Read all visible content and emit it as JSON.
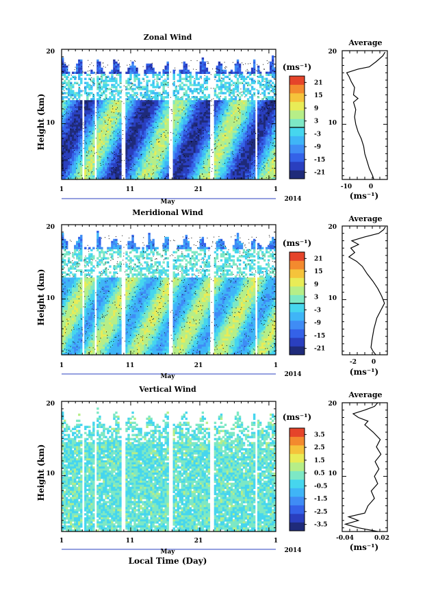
{
  "figure": {
    "month_label": "May",
    "year_label": "2014",
    "xlabel": "Local Time (Day)",
    "ylabel": "Height (km)",
    "units": "(ms⁻¹)",
    "profile_xlabel": "(ms⁻¹)",
    "profile_title": "Average",
    "colormap": [
      "#1f2b7a",
      "#2a3fbf",
      "#3462e8",
      "#3f8cf5",
      "#3fb5f7",
      "#46d6ee",
      "#7de8c5",
      "#b6ee88",
      "#e8ec57",
      "#f5c33b",
      "#f38a2e",
      "#e5442a"
    ]
  },
  "chart_data": [
    {
      "type": "heatmap",
      "title": "Zonal Wind",
      "x_ticks": [
        "1",
        "11",
        "21",
        "1"
      ],
      "y_ticks": [
        "20",
        "10"
      ],
      "ylim": [
        2.5,
        20
      ],
      "colorbar_labels": [
        "21",
        "15",
        "9",
        "3",
        "-3",
        "-9",
        "-15",
        "-21"
      ],
      "colorbar_range": [
        -24,
        24
      ],
      "profile": {
        "title": "Average",
        "x_ticks": [
          "-10",
          "0"
        ],
        "xlim": [
          -13,
          7
        ],
        "points": [
          [
            1,
            2.5
          ],
          [
            0.5,
            3
          ],
          [
            -1,
            4
          ],
          [
            -2,
            5
          ],
          [
            -3,
            6
          ],
          [
            -3.5,
            7
          ],
          [
            -4.5,
            8
          ],
          [
            -6,
            9
          ],
          [
            -7,
            10
          ],
          [
            -7.5,
            11
          ],
          [
            -7,
            12
          ],
          [
            -8,
            13
          ],
          [
            -6,
            13.5
          ],
          [
            -8,
            14
          ],
          [
            -7.5,
            15
          ],
          [
            -9,
            15.8
          ],
          [
            -10,
            16.5
          ],
          [
            -11,
            17
          ],
          [
            -6,
            17.5
          ],
          [
            -1,
            17.8
          ],
          [
            2,
            18.5
          ],
          [
            5,
            19.3
          ],
          [
            6,
            19.8
          ]
        ]
      }
    },
    {
      "type": "heatmap",
      "title": "Meridional Wind",
      "x_ticks": [
        "1",
        "11",
        "21",
        "1"
      ],
      "y_ticks": [
        "20",
        "10"
      ],
      "ylim": [
        2.5,
        20
      ],
      "colorbar_labels": [
        "21",
        "15",
        "9",
        "3",
        "-3",
        "-9",
        "-15",
        "-21"
      ],
      "colorbar_range": [
        -24,
        24
      ],
      "profile": {
        "title": "Average",
        "x_ticks": [
          "-2",
          "0"
        ],
        "xlim": [
          -3.5,
          1.2
        ],
        "points": [
          [
            0,
            2.5
          ],
          [
            -0.3,
            3
          ],
          [
            -0.5,
            3.5
          ],
          [
            -0.4,
            4.5
          ],
          [
            -0.2,
            6
          ],
          [
            0.1,
            7.5
          ],
          [
            0.5,
            8.5
          ],
          [
            0.9,
            9.5
          ],
          [
            0.6,
            10.5
          ],
          [
            0.2,
            11.5
          ],
          [
            -0.3,
            12.5
          ],
          [
            -0.9,
            13.5
          ],
          [
            -1.4,
            14.5
          ],
          [
            -2,
            15.2
          ],
          [
            -2.8,
            15.8
          ],
          [
            -2.2,
            16.4
          ],
          [
            -2.6,
            17
          ],
          [
            -1.8,
            17.5
          ],
          [
            -2.5,
            18
          ],
          [
            -1.2,
            18.5
          ],
          [
            0.3,
            19
          ],
          [
            0.8,
            19.5
          ],
          [
            1,
            19.9
          ]
        ]
      }
    },
    {
      "type": "heatmap",
      "title": "Vertical Wind",
      "x_ticks": [
        "1",
        "11",
        "21",
        "1"
      ],
      "y_ticks": [
        "20",
        "10"
      ],
      "ylim": [
        2.5,
        20
      ],
      "colorbar_labels": [
        "3.5",
        "2.5",
        "1.5",
        "0.5",
        "-0.5",
        "-1.5",
        "-2.5",
        "-3.5"
      ],
      "colorbar_range": [
        -4,
        4
      ],
      "profile": {
        "title": "Average",
        "x_ticks": [
          "-0.04",
          "0.02"
        ],
        "xlim": [
          -0.045,
          0.025
        ],
        "points": [
          [
            0.01,
            2.5
          ],
          [
            -0.02,
            3
          ],
          [
            -0.04,
            3.5
          ],
          [
            -0.02,
            4
          ],
          [
            -0.035,
            4.5
          ],
          [
            -0.01,
            5
          ],
          [
            -0.005,
            6
          ],
          [
            0.005,
            7
          ],
          [
            0.0,
            8
          ],
          [
            0.01,
            9
          ],
          [
            0.005,
            10
          ],
          [
            0.012,
            11
          ],
          [
            0.006,
            12
          ],
          [
            0.015,
            13
          ],
          [
            0.008,
            14
          ],
          [
            0.014,
            15
          ],
          [
            0.003,
            16
          ],
          [
            -0.01,
            17
          ],
          [
            -0.005,
            17.5
          ],
          [
            -0.02,
            18
          ],
          [
            -0.028,
            18.5
          ],
          [
            -0.01,
            19
          ],
          [
            0.005,
            19.5
          ],
          [
            0.01,
            20
          ]
        ]
      }
    }
  ]
}
